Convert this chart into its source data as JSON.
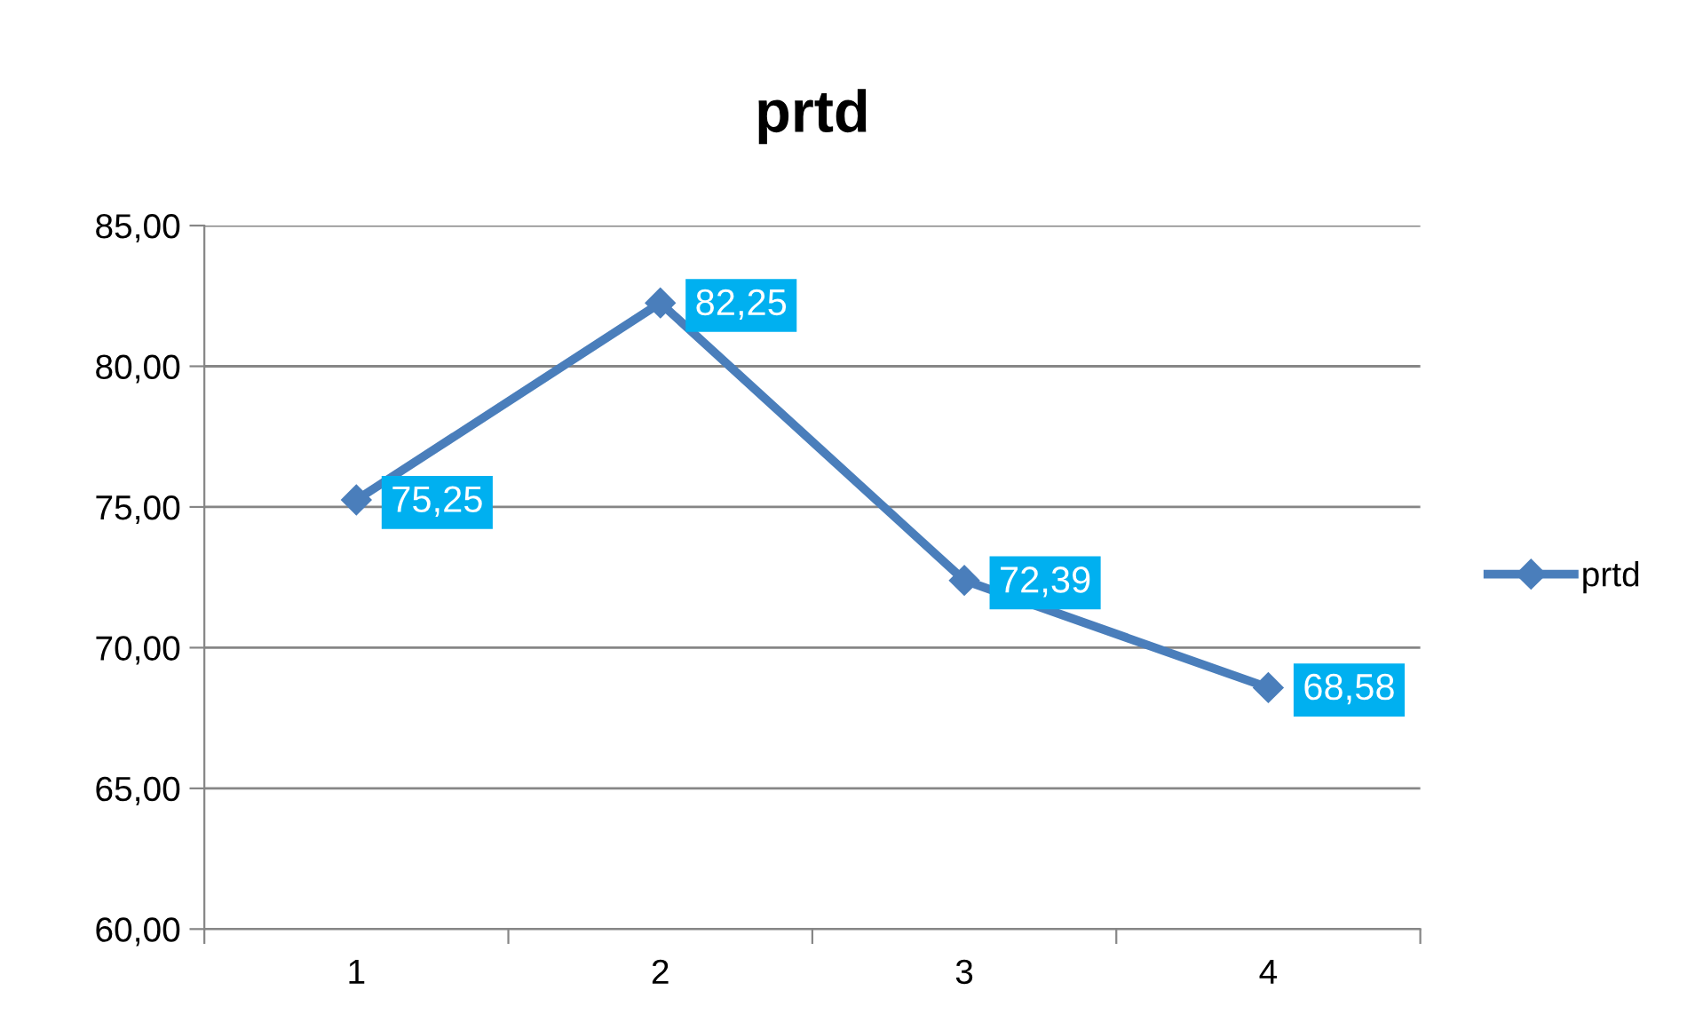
{
  "chart_data": {
    "type": "line",
    "title": "prtd",
    "categories": [
      "1",
      "2",
      "3",
      "4"
    ],
    "series": [
      {
        "name": "prtd",
        "color": "#4a7ebb",
        "values": [
          75.25,
          82.25,
          72.39,
          68.58
        ],
        "value_labels": [
          "75,25",
          "82,25",
          "72,39",
          "68,58"
        ]
      }
    ],
    "ylim": [
      60,
      85
    ],
    "yticks": [
      {
        "value": 60,
        "label": "60,00"
      },
      {
        "value": 65,
        "label": "65,00"
      },
      {
        "value": 70,
        "label": "70,00"
      },
      {
        "value": 75,
        "label": "75,00"
      },
      {
        "value": 80,
        "label": "80,00"
      },
      {
        "value": 85,
        "label": "85,00"
      }
    ],
    "grid": "y",
    "legend": "right",
    "marker": "diamond",
    "line_style": "solid"
  }
}
